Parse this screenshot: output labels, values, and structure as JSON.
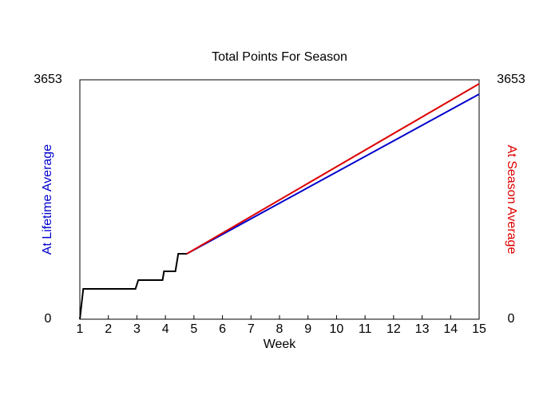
{
  "chart_data": {
    "type": "line",
    "title": "Total Points For Season",
    "xlabel": "Week",
    "ylabel": "At Lifetime Average",
    "y2label": "At Season Average",
    "xlim": [
      1,
      15
    ],
    "xticks": [
      1,
      2,
      3,
      4,
      5,
      6,
      7,
      8,
      9,
      10,
      11,
      12,
      13,
      14,
      15
    ],
    "ylim": [
      0,
      3653
    ],
    "yticks": [
      0,
      3653
    ],
    "y2lim": [
      0,
      3653
    ],
    "y2ticks": [
      0,
      3653
    ],
    "series": [
      {
        "color": "#000000",
        "x": [
          1,
          1.12,
          2.95,
          3.05,
          3.9,
          3.95,
          4.35,
          4.45,
          4.75
        ],
        "values": [
          0,
          463,
          463,
          597,
          597,
          731,
          731,
          998,
          998
        ]
      },
      {
        "color": "#0000cc",
        "x": [
          4.75,
          15
        ],
        "values": [
          998,
          3434
        ]
      },
      {
        "color": "#dd0000",
        "axis": "y2",
        "x": [
          4.75,
          15
        ],
        "values": [
          998,
          3592
        ]
      }
    ]
  }
}
